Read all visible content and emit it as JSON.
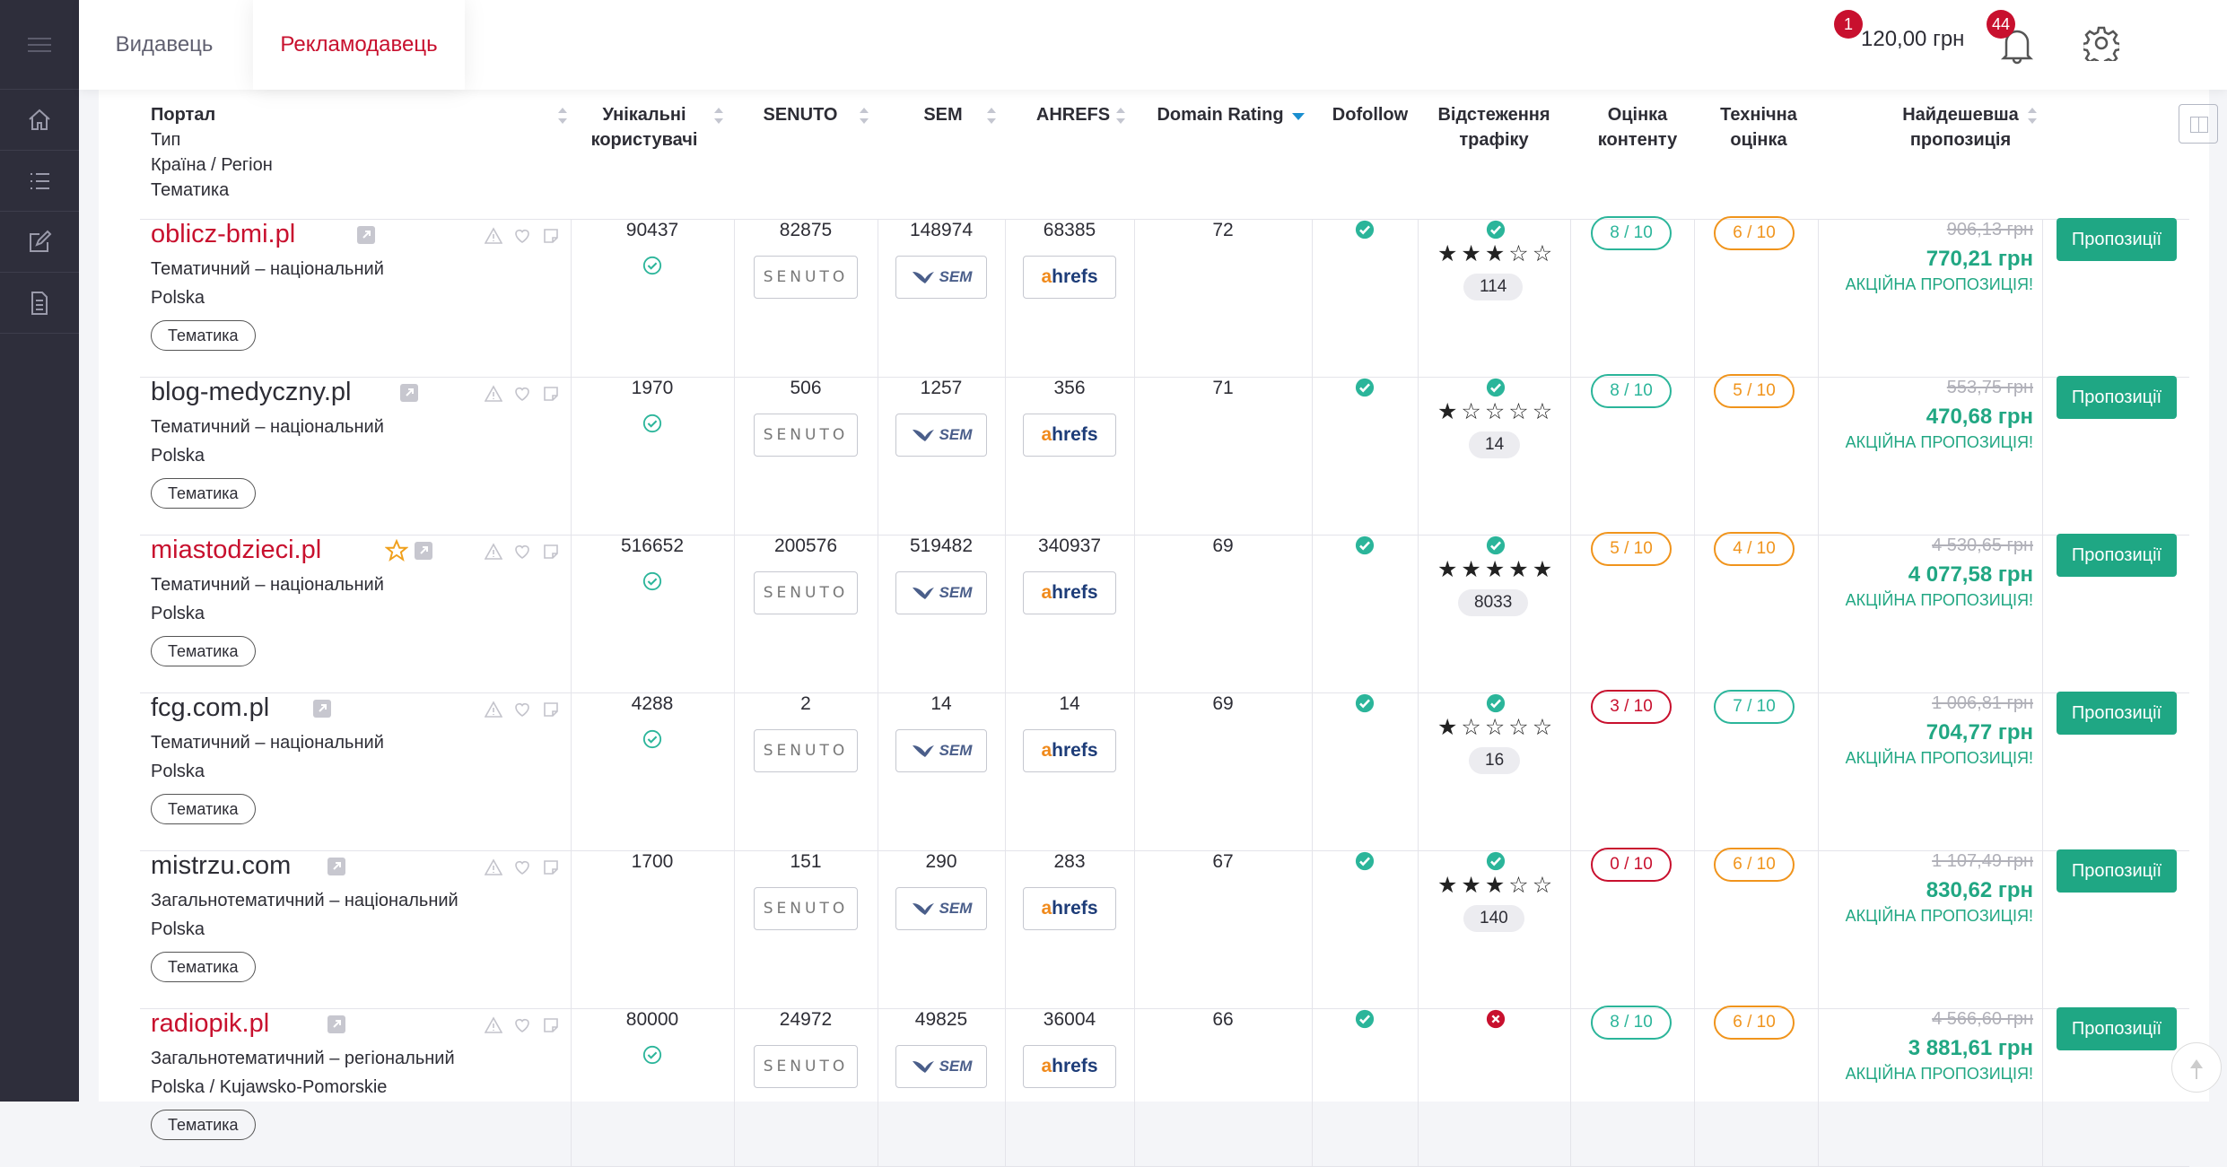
{
  "tabs": {
    "publisher": "Видавець",
    "advertiser": "Рекламодавець"
  },
  "header": {
    "balance": "120,00 грн",
    "balance_badge": "1",
    "notifications_badge": "44"
  },
  "columns": {
    "portal": [
      "Портал",
      "Тип",
      "Країна / Регіон",
      "Тематика"
    ],
    "unique_users": "Унікальні користувачі",
    "senuto": "SENUTO",
    "sem": "SEM",
    "ahrefs": "AHREFS",
    "domain_rating": "Domain Rating",
    "dofollow": "Dofollow",
    "traffic": "Відстеження трафіку",
    "content_score": "Оцінка контенту",
    "tech_score": "Технічна оцінка",
    "cheapest": "Найдешевша пропозиція"
  },
  "logos": {
    "senuto": "SENUTO",
    "sem": "SEM",
    "ahrefs_a": "a",
    "ahrefs_rest": "hrefs"
  },
  "rows": [
    {
      "domain": "oblicz-bmi.pl",
      "type": "Тематичний – національний",
      "region": "Polska",
      "tag": "Тематика",
      "users": "90437",
      "senuto": "82875",
      "sem": "148974",
      "ahrefs": "68385",
      "dr": "72",
      "stars": 3,
      "traffic_count": "114",
      "content": "8 / 10",
      "tech": "6 / 10",
      "old_price": "906,13 грн",
      "price": "770,21 грн",
      "promo": "АКЦІЙНА ПРОПОЗИЦІЯ!",
      "button": "Пропозиції"
    },
    {
      "domain": "blog-medyczny.pl",
      "type": "Тематичний – національний",
      "region": "Polska",
      "tag": "Тематика",
      "users": "1970",
      "senuto": "506",
      "sem": "1257",
      "ahrefs": "356",
      "dr": "71",
      "stars": 1,
      "traffic_count": "14",
      "content": "8 / 10",
      "tech": "5 / 10",
      "old_price": "553,75 грн",
      "price": "470,68 грн",
      "promo": "АКЦІЙНА ПРОПОЗИЦІЯ!",
      "button": "Пропозиції"
    },
    {
      "domain": "miastodzieci.pl",
      "type": "Тематичний – національний",
      "region": "Polska",
      "tag": "Тематика",
      "users": "516652",
      "senuto": "200576",
      "sem": "519482",
      "ahrefs": "340937",
      "dr": "69",
      "stars": 5,
      "traffic_count": "8033",
      "content": "5 / 10",
      "tech": "4 / 10",
      "old_price": "4 530,65 грн",
      "price": "4 077,58 грн",
      "promo": "АКЦІЙНА ПРОПОЗИЦІЯ!",
      "button": "Пропозиції"
    },
    {
      "domain": "fcg.com.pl",
      "type": "Тематичний – національний",
      "region": "Polska",
      "tag": "Тематика",
      "users": "4288",
      "senuto": "2",
      "sem": "14",
      "ahrefs": "14",
      "dr": "69",
      "stars": 1,
      "traffic_count": "16",
      "content": "3 / 10",
      "tech": "7 / 10",
      "old_price": "1 006,81 грн",
      "price": "704,77 грн",
      "promo": "АКЦІЙНА ПРОПОЗИЦІЯ!",
      "button": "Пропозиції"
    },
    {
      "domain": "mistrzu.com",
      "type": "Загальнотематичний – національний",
      "region": "Polska",
      "tag": "Тематика",
      "users": "1700",
      "senuto": "151",
      "sem": "290",
      "ahrefs": "283",
      "dr": "67",
      "stars": 3,
      "traffic_count": "140",
      "content": "0 / 10",
      "tech": "6 / 10",
      "old_price": "1 107,49 грн",
      "price": "830,62 грн",
      "promo": "АКЦІЙНА ПРОПОЗИЦІЯ!",
      "button": "Пропозиції"
    },
    {
      "domain": "radiopik.pl",
      "type": "Загальнотематичний – регіональний",
      "region": "Polska / Kujawsko-Pomorskie",
      "tag": "Тематика",
      "users": "80000",
      "senuto": "24972",
      "sem": "49825",
      "ahrefs": "36004",
      "dr": "66",
      "stars": 0,
      "traffic_count": "",
      "content": "8 / 10",
      "tech": "6 / 10",
      "old_price": "4 566,60 грн",
      "price": "3 881,61 грн",
      "promo": "АКЦІЙНА ПРОПОЗИЦІЯ!",
      "button": "Пропозиції"
    }
  ]
}
